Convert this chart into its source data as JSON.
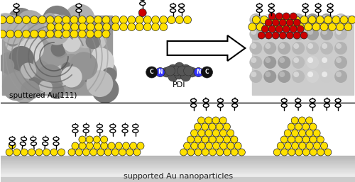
{
  "fig_width": 5.0,
  "fig_height": 2.57,
  "dpi": 100,
  "bg_color": "#ffffff",
  "yellow": "#FFE000",
  "red": "#CC0000",
  "black": "#000000",
  "blue_n": "#3333ff",
  "label_sputtered": "sputtered Au(111)",
  "label_pdi": "PDI",
  "label_supported": "supported Au nanoparticles"
}
